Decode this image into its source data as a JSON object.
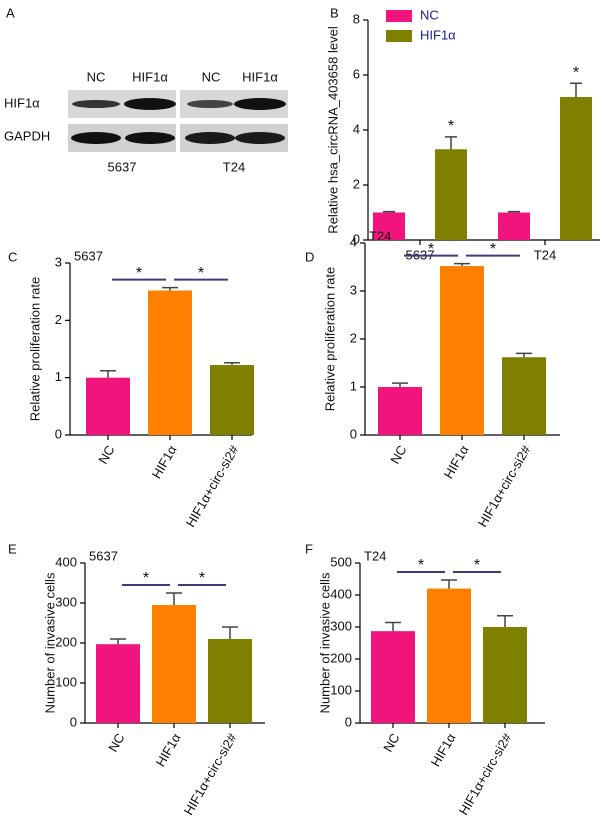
{
  "panel_a": {
    "panel": "A",
    "columns": [
      "NC",
      "HIF1α",
      "NC",
      "HIF1α"
    ],
    "rows": [
      "HIF1α",
      "GAPDH"
    ],
    "cell_lines": [
      "5637",
      "T24"
    ]
  },
  "chart_data": [
    {
      "type": "bar",
      "panel": "B",
      "y_label": "Relative hsa_circRNA_403658 level",
      "categories": [
        "5637",
        "T24"
      ],
      "series": [
        {
          "name": "NC",
          "color": "#f0147c",
          "values": [
            1.0,
            1.0
          ],
          "errors": [
            0.03,
            0.03
          ]
        },
        {
          "name": "HIF1α",
          "color": "#808000",
          "values": [
            3.3,
            5.2
          ],
          "errors": [
            0.45,
            0.5
          ]
        }
      ],
      "annotations": [
        "*",
        "*"
      ],
      "ylim": [
        0,
        8
      ],
      "yticks": [
        0,
        2,
        4,
        6,
        8
      ],
      "legend": "top-left"
    },
    {
      "type": "bar",
      "panel": "C",
      "title": "5637",
      "y_label": "Relative proliferation rate",
      "categories": [
        "NC",
        "HIF1α",
        "HIF1α+circ-si2#"
      ],
      "values": [
        1.0,
        2.52,
        1.22
      ],
      "errors": [
        0.12,
        0.05,
        0.04
      ],
      "colors": [
        "#f0147c",
        "#ff8000",
        "#808000"
      ],
      "significance": [
        {
          "categories": [
            "NC",
            "HIF1α"
          ],
          "label": "*"
        },
        {
          "categories": [
            "HIF1α",
            "HIF1α+circ-si2#"
          ],
          "label": "*"
        }
      ],
      "ylim": [
        0,
        3
      ],
      "yticks": [
        0,
        1,
        2,
        3
      ]
    },
    {
      "type": "bar",
      "panel": "D",
      "title": "T24",
      "y_label": "Relative proliferation rate",
      "categories": [
        "NC",
        "HIF1α",
        "HIF1α+circ-si2#"
      ],
      "values": [
        1.0,
        3.52,
        1.62
      ],
      "errors": [
        0.08,
        0.05,
        0.08
      ],
      "colors": [
        "#f0147c",
        "#ff8000",
        "#808000"
      ],
      "significance": [
        {
          "categories": [
            "NC",
            "HIF1α"
          ],
          "label": "*"
        },
        {
          "categories": [
            "HIF1α",
            "HIF1α+circ-si2#"
          ],
          "label": "*"
        }
      ],
      "ylim": [
        0,
        4
      ],
      "yticks": [
        0,
        1,
        2,
        3,
        4
      ]
    },
    {
      "type": "bar",
      "panel": "E",
      "title": "5637",
      "y_label": "Number of invasive cells",
      "categories": [
        "NC",
        "HIF1α",
        "HIF1α+circ-si2#"
      ],
      "values": [
        197,
        295,
        210
      ],
      "errors": [
        13,
        30,
        30
      ],
      "colors": [
        "#f0147c",
        "#ff8000",
        "#808000"
      ],
      "significance": [
        {
          "categories": [
            "NC",
            "HIF1α"
          ],
          "label": "*"
        },
        {
          "categories": [
            "HIF1α",
            "HIF1α+circ-si2#"
          ],
          "label": "*"
        }
      ],
      "ylim": [
        0,
        400
      ],
      "yticks": [
        0,
        100,
        200,
        300,
        400
      ]
    },
    {
      "type": "bar",
      "panel": "F",
      "title": "T24",
      "y_label": "Number of invasive cells",
      "categories": [
        "NC",
        "HIF1α",
        "HIF1α+circ-si2#"
      ],
      "values": [
        287,
        420,
        300
      ],
      "errors": [
        27,
        27,
        35
      ],
      "colors": [
        "#f0147c",
        "#ff8000",
        "#808000"
      ],
      "significance": [
        {
          "categories": [
            "NC",
            "HIF1α"
          ],
          "label": "*"
        },
        {
          "categories": [
            "HIF1α",
            "HIF1α+circ-si2#"
          ],
          "label": "*"
        }
      ],
      "ylim": [
        0,
        500
      ],
      "yticks": [
        0,
        100,
        200,
        300,
        400,
        500
      ]
    }
  ]
}
